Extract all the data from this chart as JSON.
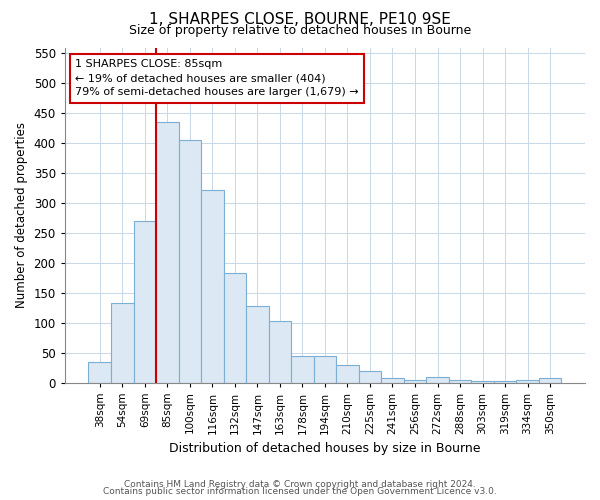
{
  "title": "1, SHARPES CLOSE, BOURNE, PE10 9SE",
  "subtitle": "Size of property relative to detached houses in Bourne",
  "xlabel": "Distribution of detached houses by size in Bourne",
  "ylabel": "Number of detached properties",
  "bar_color": "#dce8f4",
  "bar_edge_color": "#7bafd4",
  "grid_color": "#c8d8e8",
  "background_color": "#ffffff",
  "annotation_line0": "1 SHARPES CLOSE: 85sqm",
  "annotation_line1": "← 19% of detached houses are smaller (404)",
  "annotation_line2": "79% of semi-detached houses are larger (1,679) →",
  "footer1": "Contains HM Land Registry data © Crown copyright and database right 2024.",
  "footer2": "Contains public sector information licensed under the Open Government Licence v3.0.",
  "categories": [
    "38sqm",
    "54sqm",
    "69sqm",
    "85sqm",
    "100sqm",
    "116sqm",
    "132sqm",
    "147sqm",
    "163sqm",
    "178sqm",
    "194sqm",
    "210sqm",
    "225sqm",
    "241sqm",
    "256sqm",
    "272sqm",
    "288sqm",
    "303sqm",
    "319sqm",
    "334sqm",
    "350sqm"
  ],
  "values": [
    35,
    133,
    270,
    435,
    405,
    322,
    183,
    128,
    103,
    45,
    45,
    30,
    20,
    8,
    5,
    9,
    5,
    3,
    2,
    5,
    7
  ],
  "ylim": [
    0,
    560
  ],
  "yticks": [
    0,
    50,
    100,
    150,
    200,
    250,
    300,
    350,
    400,
    450,
    500,
    550
  ],
  "marker_idx": 3,
  "red_line_color": "#cc0000"
}
